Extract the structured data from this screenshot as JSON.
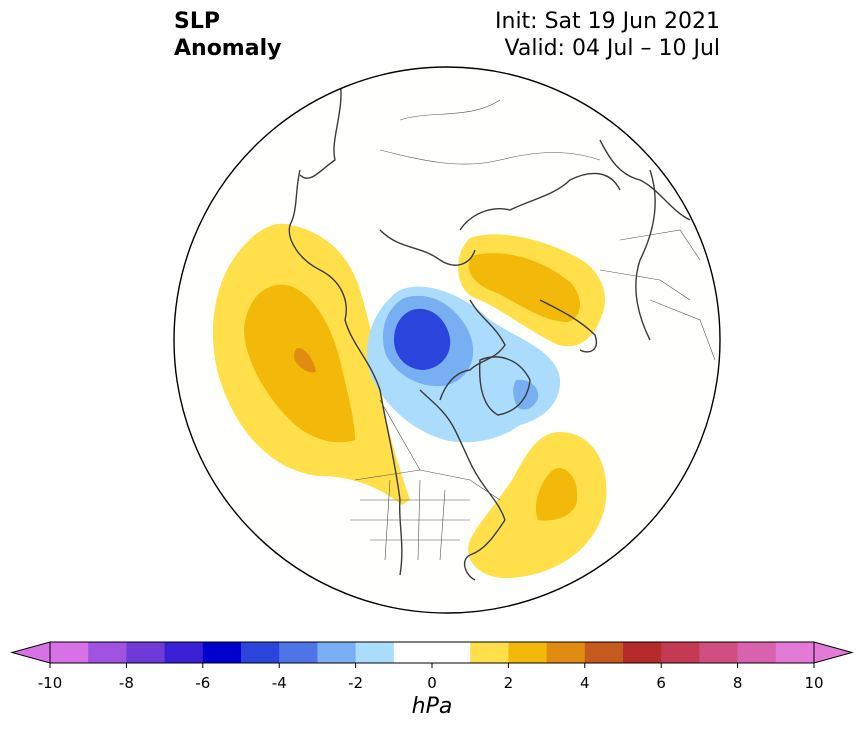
{
  "title": {
    "left_line1": "SLP",
    "left_line2": "Anomaly",
    "init": "Init: Sat 19 Jun 2021",
    "valid": "Valid: 04 Jul – 10 Jul"
  },
  "colorbar": {
    "unit": "hPa",
    "range": [
      -10,
      10
    ],
    "step": 1,
    "tick_labels": [
      "-10",
      "-8",
      "-6",
      "-4",
      "-2",
      "0",
      "2",
      "4",
      "6",
      "8",
      "10"
    ],
    "tick_values": [
      -10,
      -8,
      -6,
      -4,
      -2,
      0,
      2,
      4,
      6,
      8,
      10
    ],
    "colors": [
      "#d671e6",
      "#a052e0",
      "#6e3bd9",
      "#3a1fd4",
      "#0000cc",
      "#2a44dc",
      "#4f74e8",
      "#78aef2",
      "#acdcfc",
      "#ffffff",
      "#ffffff",
      "#ffe04a",
      "#f2b80a",
      "#e08c12",
      "#c45a1e",
      "#b52a2a",
      "#c43a52",
      "#cf4f80",
      "#d862ad",
      "#e47ad8"
    ],
    "extend": "both"
  },
  "map": {
    "projection": "north-polar-stereographic",
    "region": "Northern Hemisphere (North America / Arctic)",
    "anomaly_features": [
      {
        "sign": "positive",
        "location": "NE Pacific / Gulf of Alaska",
        "peak_hPa": 4
      },
      {
        "sign": "positive",
        "location": "Scandinavia / Barents",
        "peak_hPa": 3
      },
      {
        "sign": "positive",
        "location": "Western North Atlantic off US East Coast",
        "peak_hPa": 3
      },
      {
        "sign": "negative",
        "location": "Arctic Ocean / Beaufort Sea",
        "peak_hPa": -5
      },
      {
        "sign": "negative",
        "location": "Greenland / Baffin",
        "peak_hPa": -2
      }
    ]
  }
}
